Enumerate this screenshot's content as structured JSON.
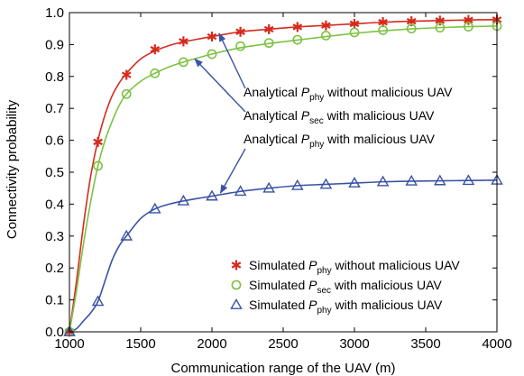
{
  "chart_data": {
    "type": "line",
    "xlabel": "Communication range of the UAV (m)",
    "ylabel": "Connectivity probability",
    "xlim": [
      1000,
      4000
    ],
    "ylim": [
      0,
      1.0
    ],
    "xticks": [
      1000,
      1500,
      2000,
      2500,
      3000,
      3500,
      4000
    ],
    "yticks": [
      0.0,
      0.1,
      0.2,
      0.3,
      0.4,
      0.5,
      0.6,
      0.7,
      0.8,
      0.9,
      1.0
    ],
    "ytick_labels": [
      "0.0",
      "0.1",
      "0.2",
      "0.3",
      "0.4",
      "0.5",
      "0.6",
      "0.7",
      "0.8",
      "0.9",
      "1.0"
    ],
    "grid": false,
    "legend_position": "bottom-right",
    "series": [
      {
        "kind": "simulated",
        "legend": {
          "prefix": "Simulated ",
          "symbol": "P",
          "subscript": "phy",
          "suffix": " without malicious UAV"
        },
        "color": "#d62a1e",
        "marker": "asterisk",
        "x": [
          1000,
          1200,
          1400,
          1600,
          1800,
          2000,
          2200,
          2400,
          2600,
          2800,
          3000,
          3200,
          3400,
          3600,
          3800,
          4000
        ],
        "values": [
          0.0,
          0.595,
          0.805,
          0.885,
          0.91,
          0.925,
          0.94,
          0.948,
          0.955,
          0.96,
          0.965,
          0.97,
          0.973,
          0.975,
          0.977,
          0.978
        ]
      },
      {
        "kind": "simulated",
        "legend": {
          "prefix": "Simulated ",
          "symbol": "P",
          "subscript": "sec",
          "suffix": " with malicious UAV"
        },
        "color": "#7dc242",
        "marker": "circle",
        "x": [
          1000,
          1200,
          1400,
          1600,
          1800,
          2000,
          2200,
          2400,
          2600,
          2800,
          3000,
          3200,
          3400,
          3600,
          3800,
          4000
        ],
        "values": [
          0.0,
          0.52,
          0.745,
          0.81,
          0.845,
          0.87,
          0.895,
          0.905,
          0.915,
          0.928,
          0.938,
          0.945,
          0.95,
          0.953,
          0.956,
          0.958
        ]
      },
      {
        "kind": "simulated",
        "legend": {
          "prefix": "Simulated ",
          "symbol": "P",
          "subscript": "phy",
          "suffix": " with malicious UAV"
        },
        "color": "#3a52a4",
        "marker": "triangle",
        "x": [
          1000,
          1200,
          1400,
          1600,
          1800,
          2000,
          2200,
          2400,
          2600,
          2800,
          3000,
          3200,
          3400,
          3600,
          3800,
          4000
        ],
        "values": [
          0.0,
          0.095,
          0.3,
          0.385,
          0.41,
          0.425,
          0.44,
          0.45,
          0.458,
          0.462,
          0.466,
          0.47,
          0.472,
          0.473,
          0.474,
          0.475
        ]
      },
      {
        "kind": "analytical",
        "color": "#d62a1e",
        "x": [
          1000,
          1050,
          1100,
          1150,
          1200,
          1250,
          1300,
          1350,
          1400,
          1500,
          1600,
          1700,
          1800,
          1900,
          2000,
          2200,
          2400,
          2600,
          2800,
          3000,
          3200,
          3400,
          3600,
          3800,
          4000
        ],
        "values": [
          0.0,
          0.16,
          0.34,
          0.49,
          0.6,
          0.68,
          0.74,
          0.78,
          0.81,
          0.855,
          0.88,
          0.897,
          0.908,
          0.917,
          0.925,
          0.94,
          0.948,
          0.955,
          0.96,
          0.965,
          0.97,
          0.973,
          0.975,
          0.977,
          0.978
        ]
      },
      {
        "kind": "analytical",
        "color": "#7dc242",
        "x": [
          1000,
          1050,
          1100,
          1150,
          1200,
          1250,
          1300,
          1350,
          1400,
          1500,
          1600,
          1700,
          1800,
          1900,
          2000,
          2200,
          2400,
          2600,
          2800,
          3000,
          3200,
          3400,
          3600,
          3800,
          4000
        ],
        "values": [
          0.0,
          0.13,
          0.28,
          0.41,
          0.52,
          0.6,
          0.66,
          0.71,
          0.745,
          0.785,
          0.81,
          0.83,
          0.845,
          0.858,
          0.87,
          0.89,
          0.903,
          0.914,
          0.925,
          0.935,
          0.943,
          0.949,
          0.953,
          0.956,
          0.958
        ]
      },
      {
        "kind": "analytical",
        "color": "#3a52a4",
        "x": [
          1000,
          1050,
          1100,
          1150,
          1200,
          1250,
          1300,
          1350,
          1400,
          1500,
          1600,
          1700,
          1800,
          1900,
          2000,
          2200,
          2400,
          2600,
          2800,
          3000,
          3200,
          3400,
          3600,
          3800,
          4000
        ],
        "values": [
          0.0,
          0.01,
          0.035,
          0.06,
          0.095,
          0.16,
          0.225,
          0.27,
          0.3,
          0.355,
          0.385,
          0.4,
          0.41,
          0.418,
          0.425,
          0.44,
          0.45,
          0.458,
          0.462,
          0.466,
          0.47,
          0.472,
          0.473,
          0.474,
          0.475
        ]
      }
    ],
    "annotations": [
      {
        "prefix": "Analytical ",
        "symbol": "P",
        "subscript": "phy",
        "suffix": " without malicious UAV",
        "target_x": 2050,
        "target_y": 0.935,
        "color": "#3a52a4"
      },
      {
        "prefix": "Analytical ",
        "symbol": "P",
        "subscript": "sec",
        "suffix": " with malicious UAV",
        "target_x": 1880,
        "target_y": 0.855,
        "color": "#3a52a4"
      },
      {
        "prefix": "Analytical ",
        "symbol": "P",
        "subscript": "phy",
        "suffix": " with malicious UAV",
        "target_x": 2060,
        "target_y": 0.435,
        "color": "#3a52a4"
      }
    ]
  }
}
